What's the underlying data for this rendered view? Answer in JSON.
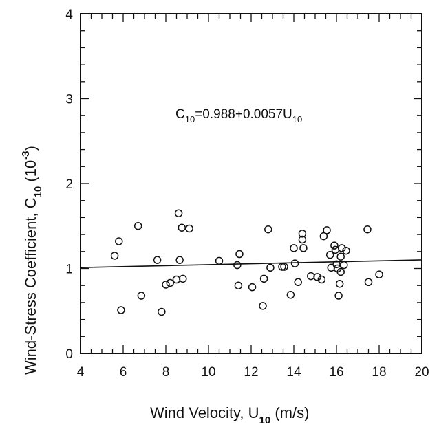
{
  "chart_data": {
    "type": "scatter",
    "title": "",
    "xlabel": {
      "main": "Wind Velocity, U",
      "sub": "10",
      "unit": " (m/s)"
    },
    "ylabel": {
      "main": "Wind-Stress Coefficient, C",
      "sub": "10",
      "mid": " (10",
      "sup": "-3",
      "end": ")"
    },
    "xlim": [
      4,
      20
    ],
    "ylim": [
      0,
      4
    ],
    "xticks": [
      4,
      6,
      8,
      10,
      12,
      14,
      16,
      18,
      20
    ],
    "yticks": [
      0,
      1,
      2,
      3,
      4
    ],
    "grid": false,
    "annotation": {
      "main": "C",
      "sub": "10",
      "rest": "=0.988+0.0057U",
      "sub2": "10"
    },
    "fit_line": {
      "intercept": 0.988,
      "slope": 0.0057
    },
    "points": [
      {
        "x": 5.6,
        "y": 1.15
      },
      {
        "x": 5.8,
        "y": 1.32
      },
      {
        "x": 5.9,
        "y": 0.51
      },
      {
        "x": 6.7,
        "y": 1.5
      },
      {
        "x": 6.85,
        "y": 0.68
      },
      {
        "x": 7.6,
        "y": 1.1
      },
      {
        "x": 7.8,
        "y": 0.49
      },
      {
        "x": 8.0,
        "y": 0.81
      },
      {
        "x": 8.2,
        "y": 0.83
      },
      {
        "x": 8.5,
        "y": 0.87
      },
      {
        "x": 8.6,
        "y": 1.65
      },
      {
        "x": 8.65,
        "y": 1.1
      },
      {
        "x": 8.75,
        "y": 1.48
      },
      {
        "x": 8.8,
        "y": 0.88
      },
      {
        "x": 9.1,
        "y": 1.47
      },
      {
        "x": 10.5,
        "y": 1.09
      },
      {
        "x": 11.35,
        "y": 1.04
      },
      {
        "x": 11.4,
        "y": 0.8
      },
      {
        "x": 11.45,
        "y": 1.17
      },
      {
        "x": 12.05,
        "y": 0.78
      },
      {
        "x": 12.55,
        "y": 0.56
      },
      {
        "x": 12.6,
        "y": 0.88
      },
      {
        "x": 12.8,
        "y": 1.46
      },
      {
        "x": 12.9,
        "y": 1.01
      },
      {
        "x": 13.45,
        "y": 1.02
      },
      {
        "x": 13.55,
        "y": 1.02
      },
      {
        "x": 13.85,
        "y": 0.69
      },
      {
        "x": 14.0,
        "y": 1.24
      },
      {
        "x": 14.05,
        "y": 1.06
      },
      {
        "x": 14.2,
        "y": 0.84
      },
      {
        "x": 14.4,
        "y": 1.41
      },
      {
        "x": 14.4,
        "y": 1.34
      },
      {
        "x": 14.45,
        "y": 1.24
      },
      {
        "x": 14.8,
        "y": 0.91
      },
      {
        "x": 15.1,
        "y": 0.9
      },
      {
        "x": 15.3,
        "y": 0.87
      },
      {
        "x": 15.4,
        "y": 1.38
      },
      {
        "x": 15.55,
        "y": 1.45
      },
      {
        "x": 15.7,
        "y": 1.16
      },
      {
        "x": 15.75,
        "y": 1.01
      },
      {
        "x": 15.9,
        "y": 1.27
      },
      {
        "x": 15.95,
        "y": 1.22
      },
      {
        "x": 16.0,
        "y": 1.05
      },
      {
        "x": 16.05,
        "y": 1.0
      },
      {
        "x": 16.1,
        "y": 0.68
      },
      {
        "x": 16.15,
        "y": 0.82
      },
      {
        "x": 16.2,
        "y": 0.96
      },
      {
        "x": 16.2,
        "y": 1.14
      },
      {
        "x": 16.25,
        "y": 1.24
      },
      {
        "x": 16.35,
        "y": 1.04
      },
      {
        "x": 16.45,
        "y": 1.21
      },
      {
        "x": 17.45,
        "y": 1.46
      },
      {
        "x": 17.5,
        "y": 0.84
      },
      {
        "x": 18.0,
        "y": 0.93
      }
    ]
  }
}
